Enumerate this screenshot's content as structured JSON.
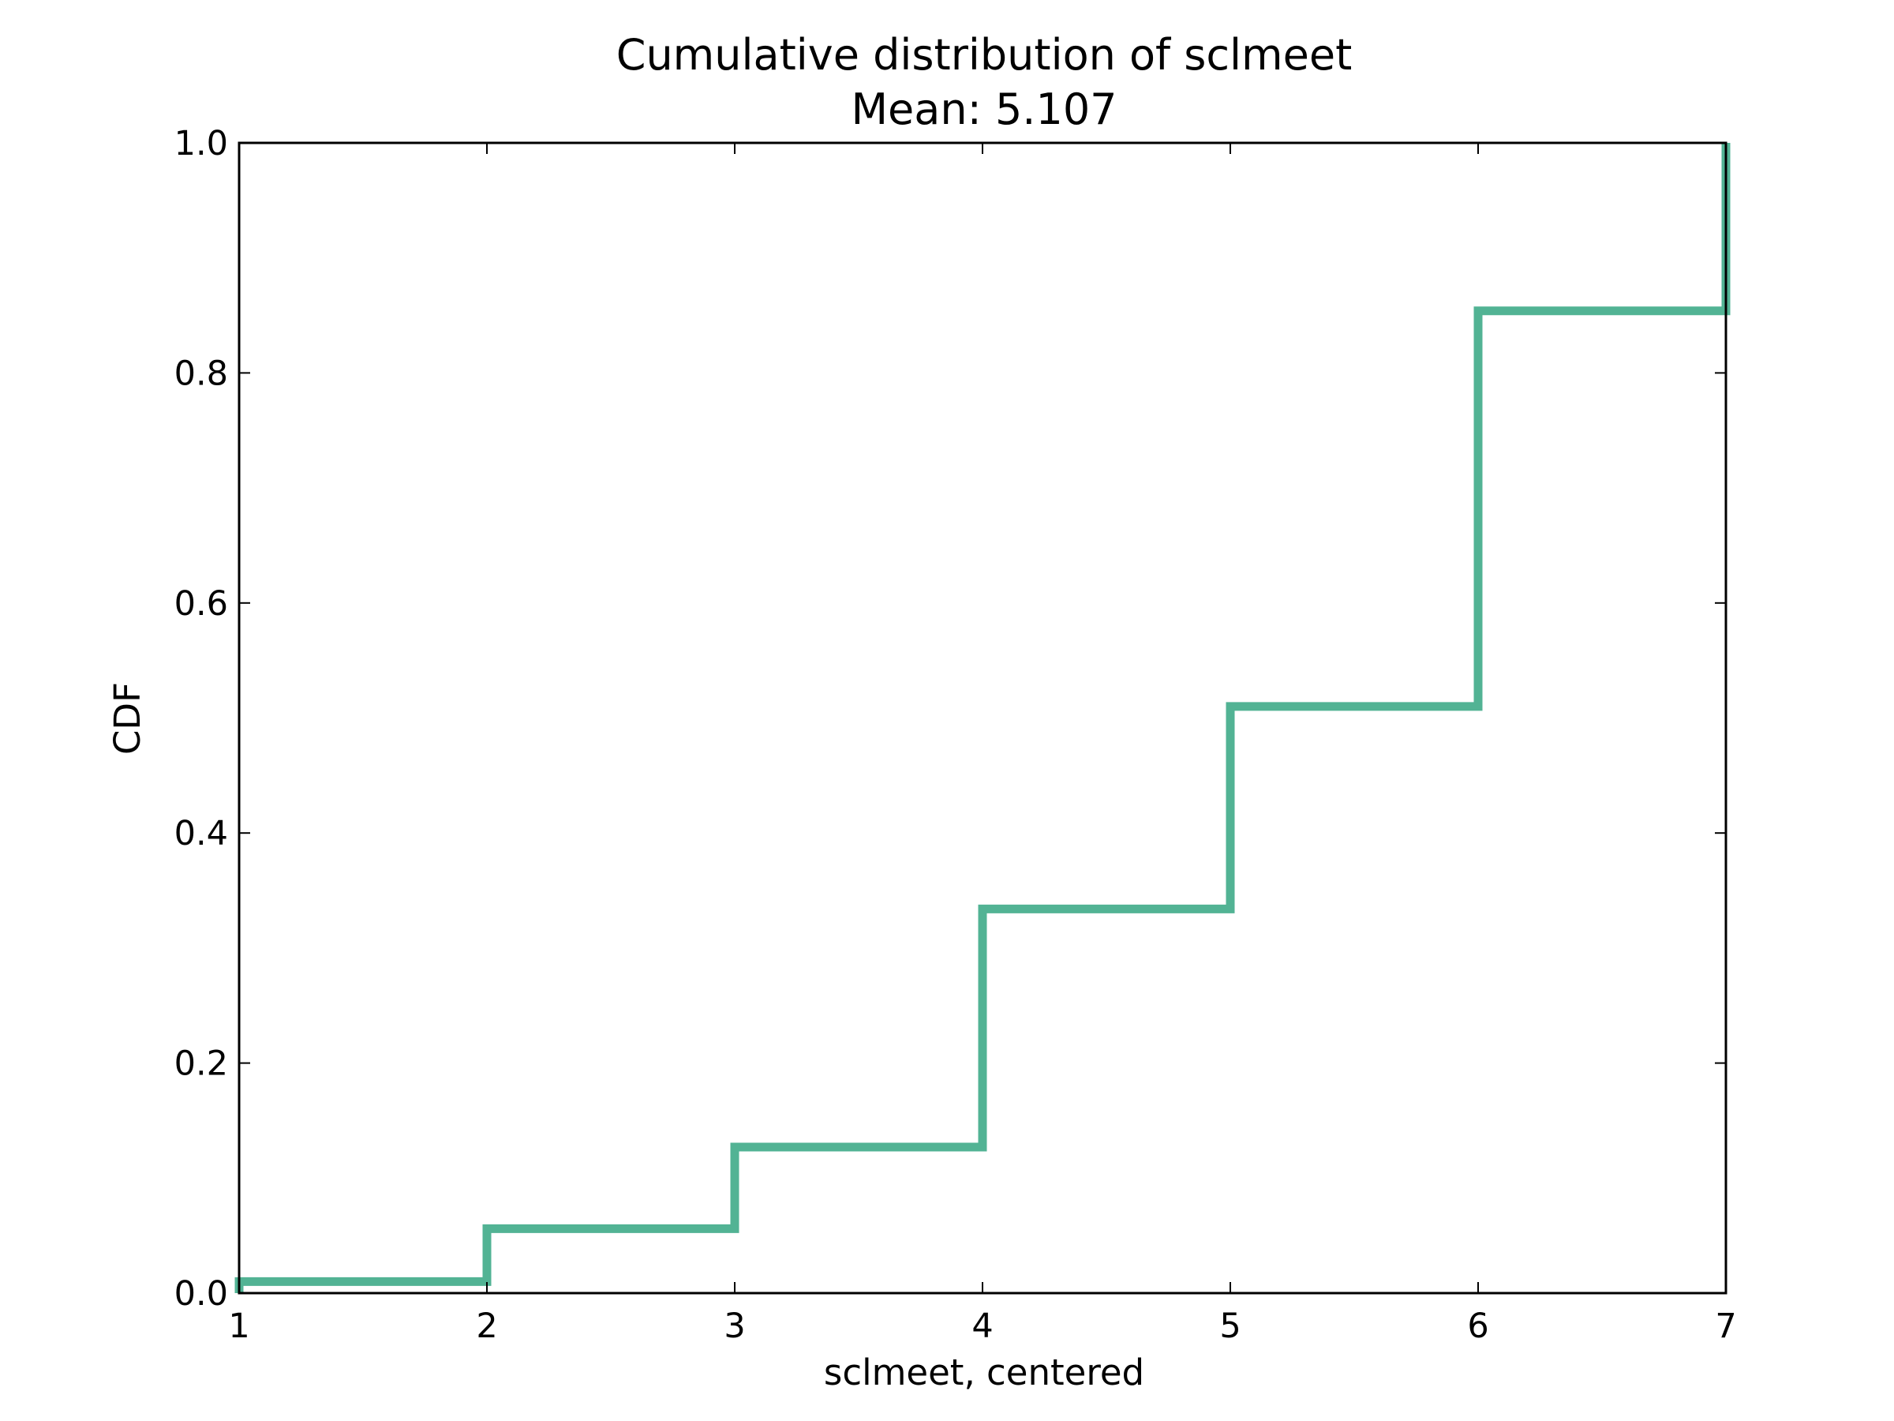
{
  "chart_data": {
    "type": "line",
    "step": "post",
    "title": "Cumulative distribution of sclmeet",
    "subtitle": "Mean: 5.107",
    "xlabel": "sclmeet, centered",
    "ylabel": "CDF",
    "xlim": [
      1,
      7
    ],
    "ylim": [
      0.0,
      1.0
    ],
    "xticks": [
      "1",
      "2",
      "3",
      "4",
      "5",
      "6",
      "7"
    ],
    "yticks": [
      "0.0",
      "0.2",
      "0.4",
      "0.6",
      "0.8",
      "1.0"
    ],
    "grid": false,
    "series": [
      {
        "color": "#52b394",
        "x": [
          1,
          2,
          3,
          4,
          5,
          6,
          7
        ],
        "y": [
          0.01,
          0.056,
          0.127,
          0.334,
          0.51,
          0.854,
          1.0
        ]
      }
    ]
  }
}
